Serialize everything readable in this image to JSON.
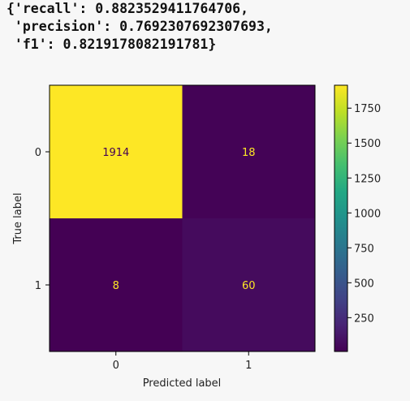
{
  "metrics_output": {
    "lines": [
      "{'recall': 0.8823529411764706,",
      " 'precision': 0.7692307692307693,",
      " 'f1': 0.8219178082191781}"
    ]
  },
  "chart_data": {
    "type": "heatmap",
    "title": "",
    "xlabel": "Predicted label",
    "ylabel": "True label",
    "x_categories": [
      "0",
      "1"
    ],
    "y_categories": [
      "0",
      "1"
    ],
    "matrix": [
      [
        1914,
        18
      ],
      [
        8,
        60
      ]
    ],
    "cell_labels": [
      [
        "1914",
        "18"
      ],
      [
        "8",
        "60"
      ]
    ],
    "colormap": "viridis",
    "colorbar": {
      "min": 8,
      "max": 1914,
      "ticks": [
        250,
        500,
        750,
        1000,
        1250,
        1500,
        1750
      ],
      "tick_labels": [
        "250",
        "500",
        "750",
        "1000",
        "1250",
        "1500",
        "1750"
      ]
    },
    "colors": {
      "high_text": "#440154",
      "low_text": "#fde725"
    }
  }
}
